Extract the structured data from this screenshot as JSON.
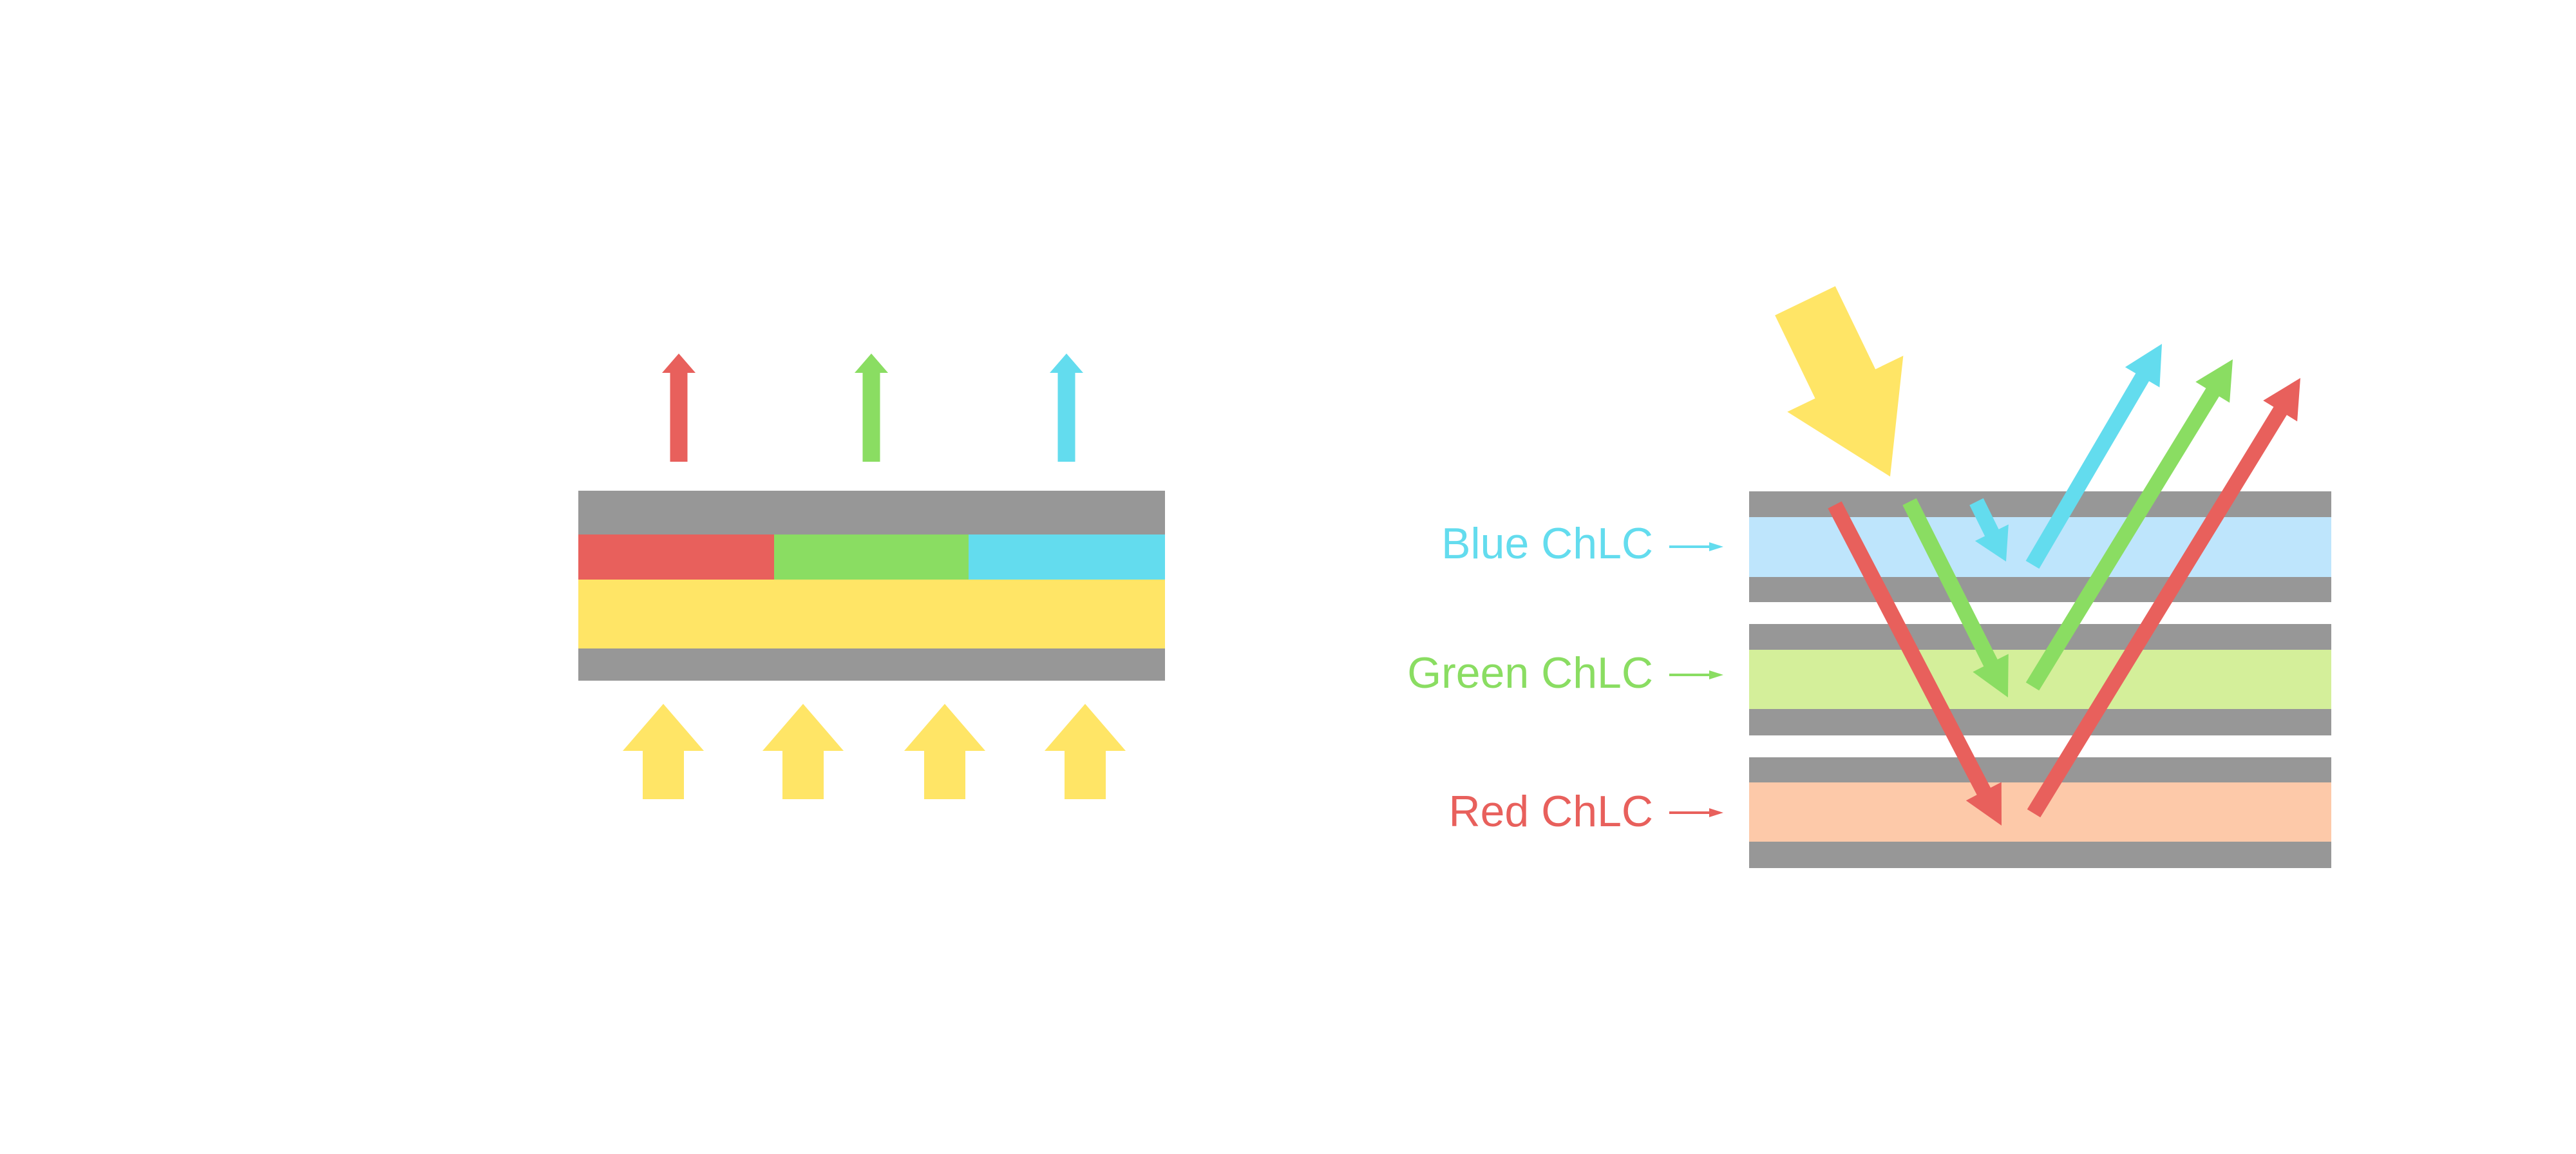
{
  "colors": {
    "gray": "#979797",
    "red": "#E8605C",
    "green": "#8ADD62",
    "cyan": "#63DCEE",
    "yellow": "#FFE566",
    "blue_layer": "#BEE5FC",
    "green_layer": "#D4EF9A",
    "red_layer": "#FDC9A9"
  },
  "labels": {
    "blue": "Blue ChLC",
    "green": "Green ChLC",
    "red": "Red ChLC"
  }
}
